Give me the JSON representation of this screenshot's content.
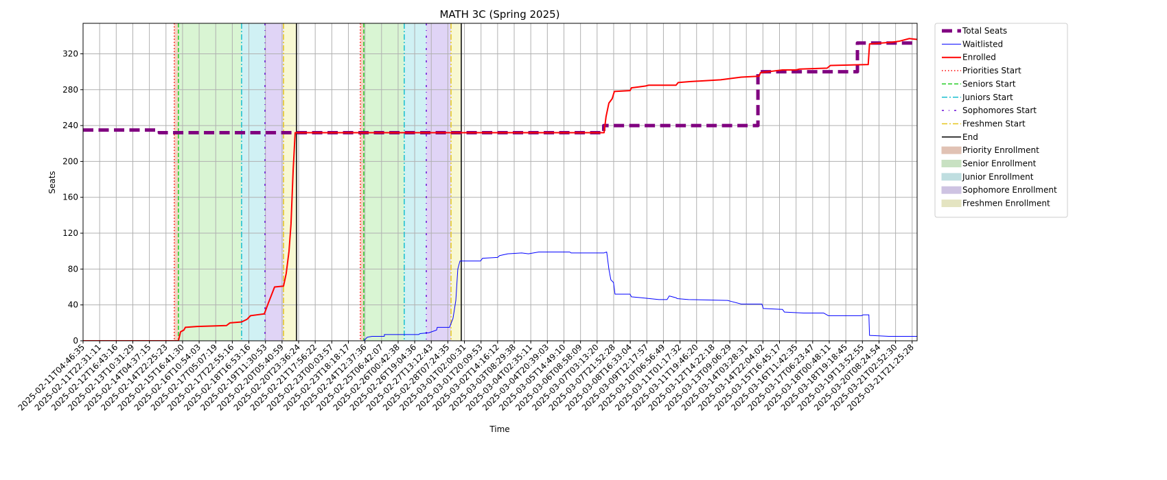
{
  "chart_data": {
    "type": "line",
    "title": "MATH 3C (Spring 2025)",
    "x_label": "Time",
    "y_label": "Seats",
    "xlim": [
      0,
      50.3
    ],
    "ylim": [
      0,
      354
    ],
    "yticks": [
      0,
      40,
      80,
      120,
      160,
      200,
      240,
      280,
      320
    ],
    "grid": true,
    "legend": "outside upper right",
    "xticks": [
      {
        "value": 0,
        "label": "2025-02-11T04:46:35"
      },
      {
        "value": 1,
        "label": "2025-02-11T22:31:11"
      },
      {
        "value": 2,
        "label": "2025-02-12T16:43:16"
      },
      {
        "value": 3,
        "label": "2025-02-13T10:31:29"
      },
      {
        "value": 4,
        "label": "2025-02-14T04:37:15"
      },
      {
        "value": 5,
        "label": "2025-02-14T22:25:23"
      },
      {
        "value": 6,
        "label": "2025-02-15T16:41:30"
      },
      {
        "value": 7,
        "label": "2025-02-16T10:54:03"
      },
      {
        "value": 8,
        "label": "2025-02-17T05:07:19"
      },
      {
        "value": 9,
        "label": "2025-02-17T22:55:16"
      },
      {
        "value": 10,
        "label": "2025-02-18T16:53:16"
      },
      {
        "value": 11,
        "label": "2025-02-19T11:30:53"
      },
      {
        "value": 12,
        "label": "2025-02-20T05:40:59"
      },
      {
        "value": 13,
        "label": "2025-02-20T23:36:24"
      },
      {
        "value": 14,
        "label": "2025-02-21T17:56:22"
      },
      {
        "value": 15,
        "label": "2025-02-23T00:03:57"
      },
      {
        "value": 16,
        "label": "2025-02-23T18:18:17"
      },
      {
        "value": 17,
        "label": "2025-02-24T12:37:36"
      },
      {
        "value": 18,
        "label": "2025-02-25T06:42:07"
      },
      {
        "value": 19,
        "label": "2025-02-26T00:42:38"
      },
      {
        "value": 20,
        "label": "2025-02-26T19:04:36"
      },
      {
        "value": 21,
        "label": "2025-02-27T13:12:43"
      },
      {
        "value": 22,
        "label": "2025-02-28T07:24:35"
      },
      {
        "value": 23,
        "label": "2025-03-01T02:00:31"
      },
      {
        "value": 24,
        "label": "2025-03-01T20:09:53"
      },
      {
        "value": 25,
        "label": "2025-03-02T14:16:12"
      },
      {
        "value": 26,
        "label": "2025-03-03T08:29:38"
      },
      {
        "value": 27,
        "label": "2025-03-04T02:35:11"
      },
      {
        "value": 28,
        "label": "2025-03-04T20:39:03"
      },
      {
        "value": 29,
        "label": "2025-03-05T14:49:10"
      },
      {
        "value": 30,
        "label": "2025-03-06T08:58:09"
      },
      {
        "value": 31,
        "label": "2025-03-07T03:13:20"
      },
      {
        "value": 32,
        "label": "2025-03-07T21:52:28"
      },
      {
        "value": 33,
        "label": "2025-03-08T16:33:04"
      },
      {
        "value": 34,
        "label": "2025-03-09T12:17:57"
      },
      {
        "value": 35,
        "label": "2025-03-10T06:56:49"
      },
      {
        "value": 36,
        "label": "2025-03-11T01:17:32"
      },
      {
        "value": 37,
        "label": "2025-03-11T19:46:20"
      },
      {
        "value": 38,
        "label": "2025-03-12T14:22:18"
      },
      {
        "value": 39,
        "label": "2025-03-13T09:06:29"
      },
      {
        "value": 40,
        "label": "2025-03-14T03:28:31"
      },
      {
        "value": 41,
        "label": "2025-03-14T22:04:02"
      },
      {
        "value": 42,
        "label": "2025-03-15T16:45:17"
      },
      {
        "value": 43,
        "label": "2025-03-16T11:42:35"
      },
      {
        "value": 44,
        "label": "2025-03-17T06:23:47"
      },
      {
        "value": 45,
        "label": "2025-03-18T00:48:11"
      },
      {
        "value": 46,
        "label": "2025-03-18T19:18:45"
      },
      {
        "value": 47,
        "label": "2025-03-19T13:52:55"
      },
      {
        "value": 48,
        "label": "2025-03-20T08:24:54"
      },
      {
        "value": 49,
        "label": "2025-03-21T02:52:30"
      },
      {
        "value": 50,
        "label": "2025-03-21T21:25:28"
      }
    ],
    "series": [
      {
        "name": "Total Seats",
        "color": "#800080",
        "style": "dashed",
        "width": 5,
        "x": [
          0,
          4.6,
          4.6,
          31.4,
          31.4,
          40.7,
          40.7,
          46.7,
          46.7,
          50.3
        ],
        "values": [
          235,
          235,
          232,
          232,
          240,
          240,
          300,
          300,
          332,
          332
        ]
      },
      {
        "name": "Waitlisted",
        "color": "#0000ff",
        "style": "solid",
        "width": 1,
        "x": [
          0,
          16.93,
          17.14,
          17.43,
          18.17,
          18.17,
          20.24,
          20.32,
          20.86,
          21.32,
          21.36,
          22.1,
          22.31,
          22.48,
          22.6,
          22.73,
          23.97,
          24.09,
          25.0,
          25.12,
          25.62,
          26.45,
          26.86,
          27.48,
          29.35,
          29.43,
          31.42,
          31.58,
          31.71,
          31.83,
          31.99,
          32.08,
          32.99,
          33.07,
          33.69,
          34.73,
          35.22,
          35.35,
          35.76,
          35.84,
          36.51,
          38.87,
          39.07,
          39.69,
          40.94,
          41.02,
          42.18,
          42.3,
          43.44,
          44.66,
          44.95,
          46.94,
          47.06,
          47.39,
          47.43,
          48.59,
          50.3
        ],
        "values": [
          0,
          0,
          4,
          5,
          5,
          7,
          7,
          8,
          9,
          12,
          15,
          15,
          25,
          45,
          80,
          89,
          89,
          92,
          93,
          95,
          97,
          98,
          97,
          99,
          99,
          98,
          98,
          99,
          80,
          68,
          65,
          52,
          52,
          49,
          48,
          46,
          46,
          50,
          48,
          47,
          46,
          45,
          44,
          41,
          41,
          36,
          35,
          32,
          31,
          31,
          28,
          28,
          29,
          29,
          6,
          5,
          5
        ]
      },
      {
        "name": "Enrolled",
        "color": "#ff0000",
        "style": "solid",
        "width": 2,
        "x": [
          0,
          5.75,
          5.88,
          6.08,
          6.17,
          6.87,
          8.65,
          8.86,
          9.56,
          9.89,
          10.1,
          10.51,
          10.93,
          11.13,
          11.34,
          11.55,
          12.09,
          12.25,
          12.42,
          12.54,
          12.67,
          12.79,
          31.42,
          31.54,
          31.71,
          31.91,
          32.04,
          32.99,
          33.07,
          33.9,
          34.11,
          35.76,
          35.89,
          36.59,
          38.45,
          39.69,
          40.77,
          40.85,
          42.18,
          43.0,
          43.21,
          44.87,
          45.07,
          47.35,
          47.43,
          48.8,
          49.21,
          49.83,
          50.3
        ],
        "values": [
          0,
          0,
          10,
          12,
          15,
          16,
          17,
          20,
          21,
          24,
          28,
          29,
          30,
          40,
          50,
          60,
          61,
          75,
          100,
          130,
          190,
          232,
          232,
          250,
          265,
          270,
          278,
          279,
          282,
          284,
          285,
          285,
          288,
          289,
          291,
          294,
          295,
          299,
          302,
          302,
          303,
          304,
          307,
          308,
          331,
          333,
          334,
          337,
          336
        ]
      }
    ],
    "markers": [
      {
        "name": "Priorities Start",
        "color": "#ff0000",
        "style": "dotted",
        "x": [
          5.5,
          16.72
        ]
      },
      {
        "name": "Seniors Start",
        "color": "#22cc22",
        "style": "dashed",
        "x": [
          5.75,
          16.93
        ]
      },
      {
        "name": "Juniors Start",
        "color": "#17becf",
        "style": "dashdot",
        "x": [
          9.56,
          19.37
        ]
      },
      {
        "name": "Sophomores Start",
        "color": "#6a0dd6",
        "style": "loosedashdot",
        "x": [
          10.97,
          20.7
        ]
      },
      {
        "name": "Freshmen Start",
        "color": "#e6c619",
        "style": "dashdot",
        "x": [
          12.09,
          22.19
        ]
      },
      {
        "name": "End",
        "color": "#000000",
        "style": "solid",
        "x": [
          12.87,
          22.81
        ]
      }
    ],
    "regions": [
      {
        "name": "Priority Enrollment",
        "color": "#f5d3c4",
        "spans": [
          [
            5.5,
            5.75
          ],
          [
            16.72,
            16.93
          ]
        ]
      },
      {
        "name": "Senior Enrollment",
        "color": "#d9f5d3",
        "spans": [
          [
            5.75,
            9.56
          ],
          [
            16.93,
            19.37
          ]
        ]
      },
      {
        "name": "Junior Enrollment",
        "color": "#d0f1f4",
        "spans": [
          [
            9.56,
            10.97
          ],
          [
            19.37,
            20.7
          ]
        ]
      },
      {
        "name": "Sophomore Enrollment",
        "color": "#e0d4f6",
        "spans": [
          [
            10.97,
            12.09
          ],
          [
            20.7,
            22.19
          ]
        ]
      },
      {
        "name": "Freshmen Enrollment",
        "color": "#f8f8d2",
        "spans": [
          [
            12.09,
            12.87
          ],
          [
            22.19,
            22.81
          ]
        ]
      }
    ]
  }
}
